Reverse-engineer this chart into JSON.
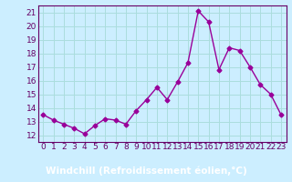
{
  "x": [
    0,
    1,
    2,
    3,
    4,
    5,
    6,
    7,
    8,
    9,
    10,
    11,
    12,
    13,
    14,
    15,
    16,
    17,
    18,
    19,
    20,
    21,
    22,
    23
  ],
  "y": [
    13.5,
    13.1,
    12.8,
    12.5,
    12.1,
    12.7,
    13.2,
    13.1,
    12.8,
    13.8,
    14.6,
    15.5,
    14.6,
    15.9,
    17.3,
    21.1,
    20.3,
    16.8,
    18.4,
    18.2,
    17.0,
    15.7,
    15.0,
    13.5
  ],
  "line_color": "#990099",
  "marker": "D",
  "marker_size": 2.5,
  "linewidth": 1.0,
  "background_color": "#cceeff",
  "grid_color": "#aadddd",
  "xlabel": "Windchill (Refroidissement éolien,°C)",
  "xlabel_fontsize": 7.5,
  "ylabel_fontsize": 6.5,
  "tick_fontsize": 6.5,
  "ylim": [
    11.5,
    21.5
  ],
  "yticks": [
    12,
    13,
    14,
    15,
    16,
    17,
    18,
    19,
    20,
    21
  ],
  "xlim": [
    -0.5,
    23.5
  ],
  "xticks": [
    0,
    1,
    2,
    3,
    4,
    5,
    6,
    7,
    8,
    9,
    10,
    11,
    12,
    13,
    14,
    15,
    16,
    17,
    18,
    19,
    20,
    21,
    22,
    23
  ],
  "xlabel_bg_color": "#660066",
  "xlabel_text_color": "#ffffff",
  "tick_color": "#660066",
  "spine_color": "#660066"
}
